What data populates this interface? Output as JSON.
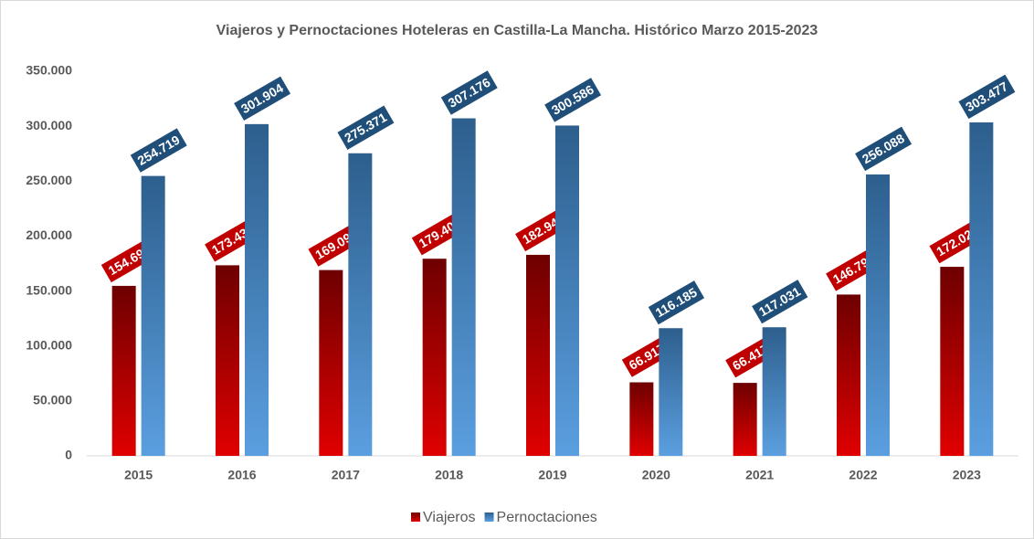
{
  "chart_data": {
    "type": "bar",
    "title": "Viajeros y Pernoctaciones Hoteleras en Castilla-La Mancha. Histórico Marzo 2015-2023",
    "categories": [
      "2015",
      "2016",
      "2017",
      "2018",
      "2019",
      "2020",
      "2021",
      "2022",
      "2023"
    ],
    "series": [
      {
        "name": "Viajeros",
        "color": "#c00000",
        "values": [
          154699,
          173434,
          169091,
          179402,
          182947,
          66917,
          66417,
          146796,
          172028
        ],
        "value_labels": [
          "154.699",
          "173.434",
          "169.091",
          "179.402",
          "182.947",
          "66.917",
          "66.417",
          "146.796",
          "172.028"
        ]
      },
      {
        "name": "Pernoctaciones",
        "color": "#1f4e79",
        "values": [
          254719,
          301904,
          275371,
          307176,
          300586,
          116185,
          117031,
          256088,
          303477
        ],
        "value_labels": [
          "254.719",
          "301.904",
          "275.371",
          "307.176",
          "300.586",
          "116.185",
          "117.031",
          "256.088",
          "303.477"
        ]
      }
    ],
    "ylim": [
      0,
      350000
    ],
    "yticks": [
      0,
      {
        "value": 50000,
        "label": "50.000"
      },
      {
        "value": 100000,
        "label": "100.000"
      },
      {
        "value": 150000,
        "label": "150.000"
      },
      {
        "value": 200000,
        "label": "200.000"
      },
      {
        "value": 250000,
        "label": "250.000"
      },
      {
        "value": 300000,
        "label": "300.000"
      },
      {
        "value": 350000,
        "label": "350.000"
      }
    ],
    "legend": "bottom"
  }
}
